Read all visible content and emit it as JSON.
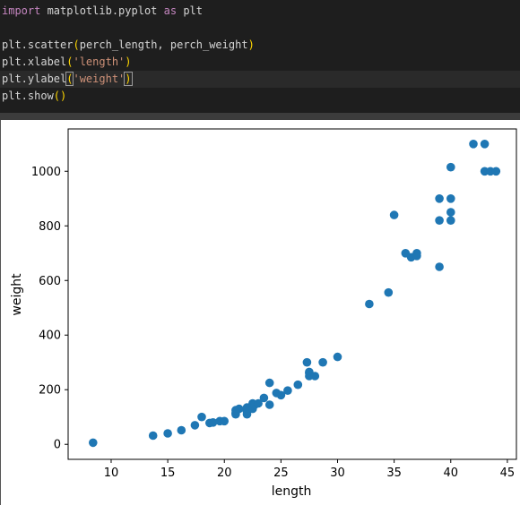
{
  "code": {
    "line1": {
      "kw_import": "import",
      "module": " matplotlib.pyplot ",
      "kw_as": "as",
      "alias": " plt"
    },
    "line3": {
      "call": "plt.scatter",
      "open": "(",
      "args": "perch_length, perch_weight",
      "close": ")"
    },
    "line4": {
      "call": "plt.xlabel",
      "open": "(",
      "arg": "'length'",
      "close": ")"
    },
    "line5": {
      "call": "plt.ylabel",
      "open": "(",
      "arg": "'weight'",
      "close": ")"
    },
    "line6": {
      "call": "plt.show",
      "open": "(",
      "close": ")"
    }
  },
  "colors": {
    "editor_bg": "#1e1e1e",
    "keyword": "#c586c0",
    "string": "#ce9178",
    "bracket": "#ffd700",
    "marker": "#1f77b4"
  },
  "chart_data": {
    "type": "scatter",
    "xlabel": "length",
    "ylabel": "weight",
    "xlim": [
      6.2,
      45.8
    ],
    "ylim": [
      -55,
      1155
    ],
    "xticks": [
      10,
      15,
      20,
      25,
      30,
      35,
      40,
      45
    ],
    "yticks": [
      0,
      200,
      400,
      600,
      800,
      1000
    ],
    "grid": false,
    "points": [
      [
        8.4,
        5.9
      ],
      [
        13.7,
        32
      ],
      [
        15.0,
        40
      ],
      [
        16.2,
        51.5
      ],
      [
        17.4,
        70
      ],
      [
        18.0,
        100
      ],
      [
        18.7,
        78
      ],
      [
        19.0,
        80
      ],
      [
        19.6,
        85
      ],
      [
        20.0,
        85
      ],
      [
        21.0,
        110
      ],
      [
        21.0,
        115
      ],
      [
        21.0,
        125
      ],
      [
        21.3,
        130
      ],
      [
        22.0,
        120
      ],
      [
        22.0,
        120
      ],
      [
        22.0,
        130
      ],
      [
        22.0,
        135
      ],
      [
        22.0,
        110
      ],
      [
        22.5,
        130
      ],
      [
        22.5,
        150
      ],
      [
        22.7,
        145
      ],
      [
        23.0,
        150
      ],
      [
        23.5,
        170
      ],
      [
        24.0,
        225
      ],
      [
        24.0,
        145
      ],
      [
        24.6,
        188
      ],
      [
        25.0,
        180
      ],
      [
        25.6,
        197
      ],
      [
        26.5,
        218
      ],
      [
        27.3,
        300
      ],
      [
        27.5,
        260
      ],
      [
        27.5,
        265
      ],
      [
        27.5,
        250
      ],
      [
        28.0,
        250
      ],
      [
        28.7,
        300
      ],
      [
        30.0,
        320
      ],
      [
        32.8,
        514
      ],
      [
        34.5,
        556
      ],
      [
        35.0,
        840
      ],
      [
        36.5,
        685
      ],
      [
        36.0,
        700
      ],
      [
        37.0,
        700
      ],
      [
        37.0,
        690
      ],
      [
        39.0,
        900
      ],
      [
        39.0,
        650
      ],
      [
        39.0,
        820
      ],
      [
        40.0,
        850
      ],
      [
        40.0,
        900
      ],
      [
        40.0,
        1015
      ],
      [
        40.0,
        820
      ],
      [
        42.0,
        1100
      ],
      [
        43.0,
        1000
      ],
      [
        43.0,
        1100
      ],
      [
        43.5,
        1000
      ],
      [
        44.0,
        1000
      ]
    ]
  }
}
